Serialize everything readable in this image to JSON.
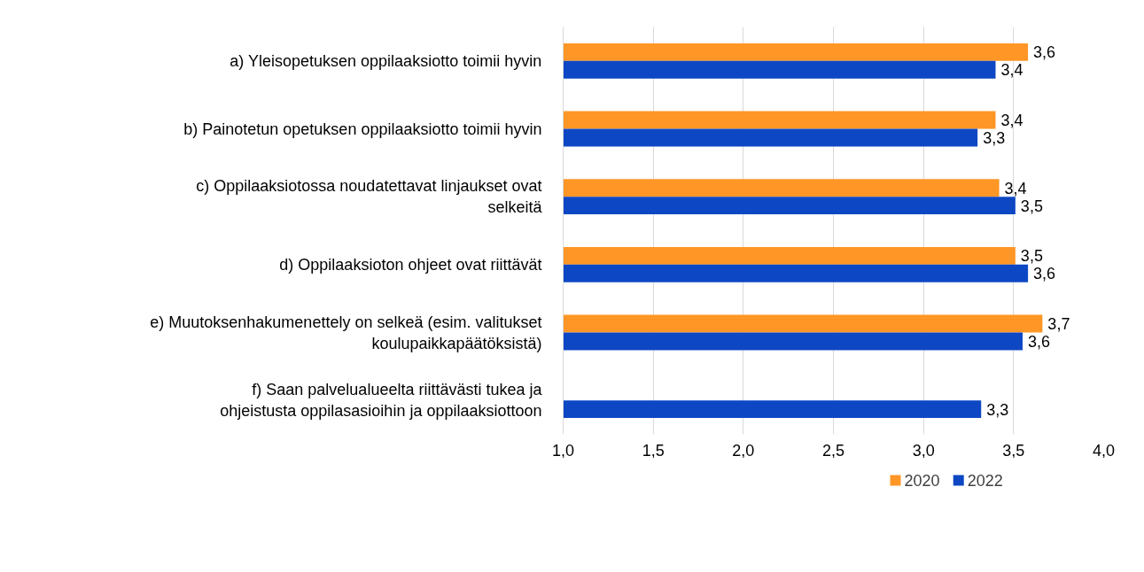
{
  "chart_data": {
    "type": "bar",
    "orientation": "horizontal",
    "categories": [
      "a) Yleisopetuksen oppilaaksiotto toimii hyvin",
      "b) Painotetun opetuksen oppilaaksiotto toimii hyvin",
      "c) Oppilaaksiotossa noudatettavat linjaukset ovat selkeitä",
      "d) Oppilaaksioton ohjeet ovat riittävät",
      "e) Muutoksenhakumenettely on selkeä (esim. valitukset koulupaikkapäätöksistä)",
      "f) Saan palvelualueelta riittävästi tukea ja ohjeistusta oppilasasioihin ja oppilaaksiottoon"
    ],
    "series": [
      {
        "name": "2020",
        "color": "#ff9626",
        "values": [
          3.58,
          3.4,
          3.42,
          3.51,
          3.66,
          null
        ],
        "value_labels": [
          "3,6",
          "3,4",
          "3,4",
          "3,5",
          "3,7",
          null
        ]
      },
      {
        "name": "2022",
        "color": "#0d47c4",
        "values": [
          3.4,
          3.3,
          3.51,
          3.58,
          3.55,
          3.32
        ],
        "value_labels": [
          "3,4",
          "3,3",
          "3,5",
          "3,6",
          "3,6",
          "3,3"
        ]
      }
    ],
    "xlim": [
      1,
      4
    ],
    "xticks": [
      {
        "value": 1,
        "label": "1,0"
      },
      {
        "value": 1.5,
        "label": "1,5"
      },
      {
        "value": 2,
        "label": "2,0"
      },
      {
        "value": 2.5,
        "label": "2,5"
      },
      {
        "value": 3,
        "label": "3,0"
      },
      {
        "value": 3.5,
        "label": "3,5"
      },
      {
        "value": 4,
        "label": "4,0"
      }
    ],
    "grid": "x",
    "legend": "bottom"
  }
}
